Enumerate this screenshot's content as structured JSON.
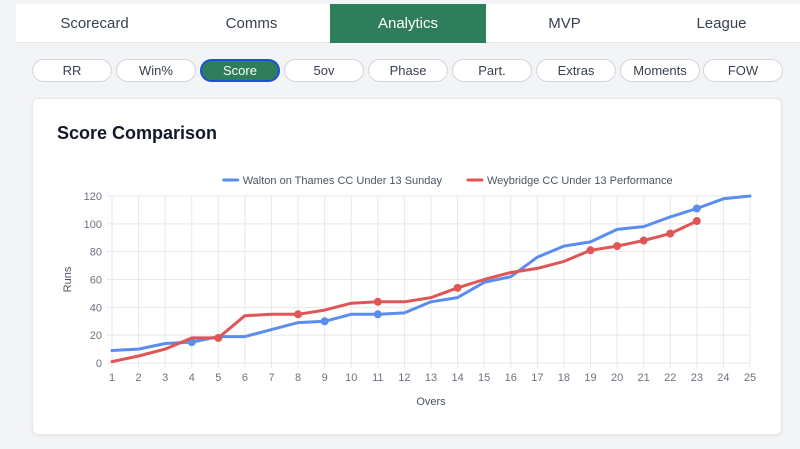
{
  "tabs": [
    {
      "label": "Scorecard",
      "active": false
    },
    {
      "label": "Comms",
      "active": false
    },
    {
      "label": "Analytics",
      "active": true
    },
    {
      "label": "MVP",
      "active": false
    },
    {
      "label": "League",
      "active": false
    }
  ],
  "subtabs": [
    {
      "label": "RR",
      "active": false
    },
    {
      "label": "Win%",
      "active": false
    },
    {
      "label": "Score",
      "active": true
    },
    {
      "label": "5ov",
      "active": false
    },
    {
      "label": "Phase",
      "active": false
    },
    {
      "label": "Part.",
      "active": false
    },
    {
      "label": "Extras",
      "active": false
    },
    {
      "label": "Moments",
      "active": false
    },
    {
      "label": "FOW",
      "active": false
    }
  ],
  "card": {
    "title": "Score Comparison"
  },
  "colors": {
    "accent": "#2e7d5b",
    "series_a": "#5b8def",
    "series_b": "#e05555"
  },
  "chart_data": {
    "type": "line",
    "title": "",
    "xlabel": "Overs",
    "ylabel": "Runs",
    "xlim": [
      1,
      25
    ],
    "ylim": [
      0,
      120
    ],
    "x_ticks": [
      1,
      2,
      3,
      4,
      5,
      6,
      7,
      8,
      9,
      10,
      11,
      12,
      13,
      14,
      15,
      16,
      17,
      18,
      19,
      20,
      21,
      22,
      23,
      24,
      25
    ],
    "y_ticks": [
      0,
      20,
      40,
      60,
      80,
      100,
      120
    ],
    "grid": true,
    "legend_position": "top",
    "series": [
      {
        "name": "Walton on Thames CC Under 13 Sunday",
        "color": "#5b8def",
        "x": [
          1,
          2,
          3,
          4,
          5,
          6,
          7,
          8,
          9,
          10,
          11,
          12,
          13,
          14,
          15,
          16,
          17,
          18,
          19,
          20,
          21,
          22,
          23,
          24,
          25
        ],
        "y": [
          9,
          10,
          14,
          15,
          19,
          19,
          24,
          29,
          30,
          35,
          35,
          36,
          44,
          47,
          58,
          62,
          76,
          84,
          87,
          96,
          98,
          105,
          111,
          118,
          120
        ],
        "markers_x": [
          4,
          9,
          11,
          23
        ]
      },
      {
        "name": "Weybridge CC Under 13 Performance",
        "color": "#e05555",
        "x": [
          1,
          2,
          3,
          4,
          5,
          6,
          7,
          8,
          9,
          10,
          11,
          12,
          13,
          14,
          15,
          16,
          17,
          18,
          19,
          20,
          21,
          22,
          23
        ],
        "y": [
          1,
          5,
          10,
          18,
          18,
          34,
          35,
          35,
          38,
          43,
          44,
          44,
          47,
          54,
          60,
          65,
          68,
          73,
          81,
          84,
          88,
          93,
          102
        ],
        "markers_x": [
          5,
          8,
          11,
          14,
          19,
          20,
          21,
          22,
          23
        ]
      }
    ]
  }
}
